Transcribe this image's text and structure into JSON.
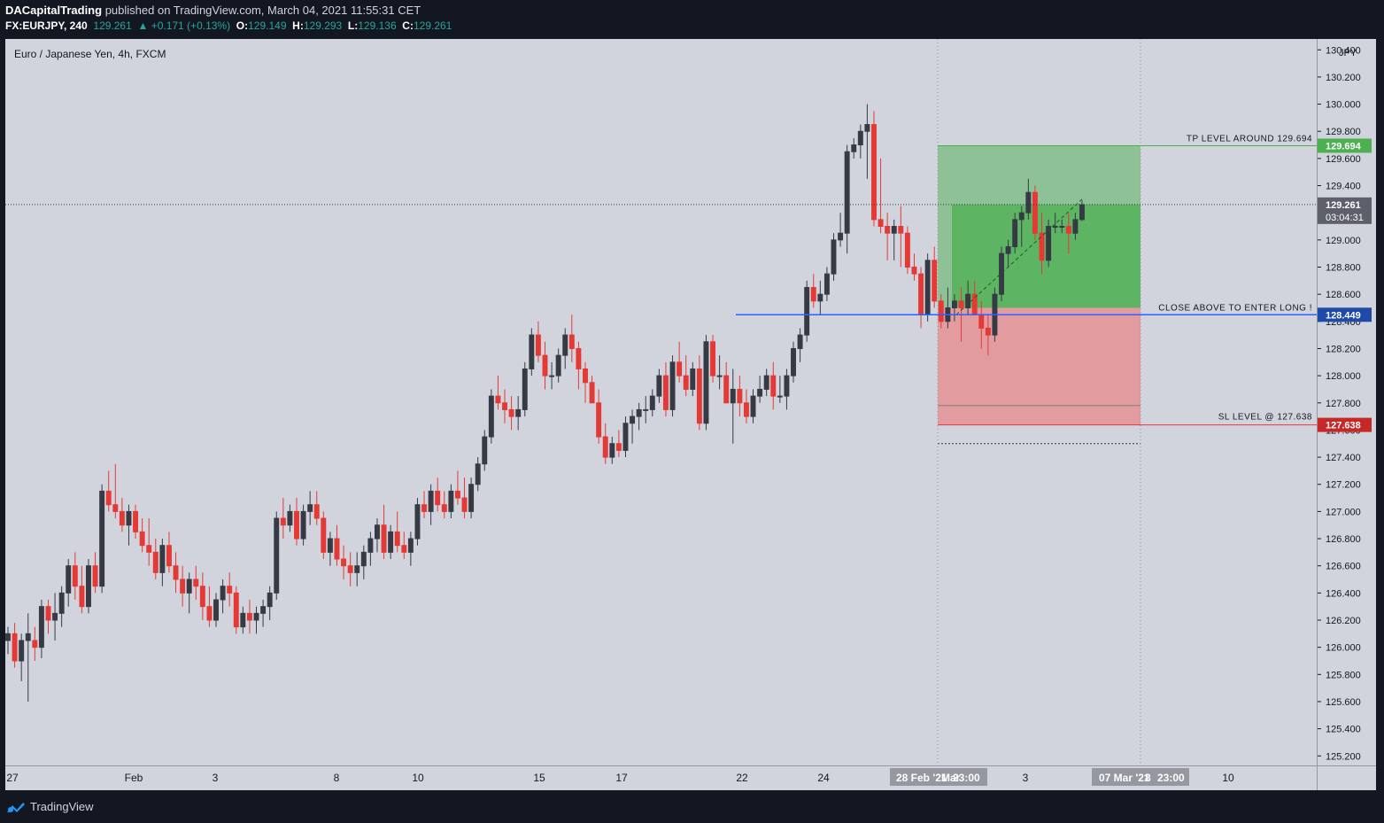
{
  "header": {
    "author": "DACapitalTrading",
    "published": "published on TradingView.com, March 04, 2021 11:55:31 CET",
    "symbol": "FX:EURJPY, 240",
    "last": "129.261",
    "change_arrow": "▲",
    "change": "+0.171 (+0.13%)",
    "o_label": "O:",
    "o": "129.149",
    "h_label": "H:",
    "h": "129.293",
    "l_label": "L:",
    "l": "129.136",
    "c_label": "C:",
    "c": "129.261"
  },
  "footer": {
    "brand": "TradingView",
    "icon": "tradingview-logo-icon"
  },
  "colors": {
    "background": "#d1d4dc",
    "bull": "#363a45",
    "bear": "#e53935",
    "hline": "#2962ff",
    "tp_zone": "#4caf50",
    "sl_zone": "#f06e70",
    "tp_badge": "#4caf50",
    "sl_badge": "#c62828",
    "entry_badge": "#1e4aa8"
  },
  "chart_data": {
    "type": "candlestick",
    "title": "Euro / Japanese Yen, 4h, FXCM",
    "currency_label": "JPY",
    "ylim": [
      125.13,
      130.48
    ],
    "y_ticks": [
      "125.200",
      "125.400",
      "125.600",
      "125.800",
      "126.000",
      "126.200",
      "126.400",
      "126.600",
      "126.800",
      "127.000",
      "127.200",
      "127.400",
      "127.600",
      "127.800",
      "128.000",
      "128.200",
      "128.400",
      "128.600",
      "128.800",
      "129.000",
      "129.200",
      "129.400",
      "129.600",
      "129.800",
      "130.000",
      "130.200",
      "130.400"
    ],
    "x_ticks": [
      "27",
      "Feb",
      "3",
      "8",
      "10",
      "15",
      "17",
      "22",
      "24",
      "3",
      "10"
    ],
    "x_highlight_labels": [
      "28 Feb '21",
      "Mar",
      "23:00",
      "07 Mar '21",
      "8",
      "23:00"
    ],
    "current_price": {
      "value": "129.261",
      "countdown": "03:04:31"
    },
    "levels": {
      "tp": {
        "value": 129.694,
        "label": "TP LEVEL AROUND 129.694",
        "badge": "129.694"
      },
      "entry": {
        "value": 128.449,
        "label": "CLOSE ABOVE TO ENTER LONG !",
        "badge": "128.449"
      },
      "sl": {
        "value": 127.638,
        "label": "SL LEVEL @ 127.638",
        "badge": "127.638"
      }
    },
    "position": {
      "entry_from": 128.5,
      "current": 129.261,
      "tp": 129.694,
      "sl": 127.638,
      "stop_dotted": 127.5,
      "sl_inner": 127.78
    },
    "candles": [
      [
        126.05,
        126.15,
        125.95,
        126.1
      ],
      [
        126.1,
        126.18,
        125.85,
        125.9
      ],
      [
        125.9,
        126.1,
        125.75,
        126.05
      ],
      [
        126.05,
        126.25,
        125.6,
        126.1
      ],
      [
        126.05,
        126.15,
        125.9,
        126.0
      ],
      [
        126.0,
        126.35,
        125.92,
        126.3
      ],
      [
        126.3,
        126.35,
        126.1,
        126.2
      ],
      [
        126.2,
        126.4,
        126.05,
        126.25
      ],
      [
        126.25,
        126.45,
        126.15,
        126.4
      ],
      [
        126.4,
        126.65,
        126.3,
        126.6
      ],
      [
        126.6,
        126.7,
        126.35,
        126.45
      ],
      [
        126.45,
        126.6,
        126.25,
        126.3
      ],
      [
        126.3,
        126.65,
        126.25,
        126.6
      ],
      [
        126.6,
        126.7,
        126.4,
        126.45
      ],
      [
        126.45,
        127.2,
        126.4,
        127.15
      ],
      [
        127.15,
        127.3,
        127.0,
        127.05
      ],
      [
        127.05,
        127.35,
        126.95,
        127.0
      ],
      [
        127.0,
        127.1,
        126.85,
        126.9
      ],
      [
        126.9,
        127.05,
        126.75,
        127.0
      ],
      [
        127.0,
        127.05,
        126.8,
        126.85
      ],
      [
        126.85,
        126.95,
        126.7,
        126.75
      ],
      [
        126.75,
        126.95,
        126.6,
        126.7
      ],
      [
        126.7,
        126.8,
        126.5,
        126.55
      ],
      [
        126.55,
        126.8,
        126.45,
        126.75
      ],
      [
        126.75,
        126.85,
        126.55,
        126.6
      ],
      [
        126.6,
        126.7,
        126.4,
        126.5
      ],
      [
        126.5,
        126.6,
        126.3,
        126.4
      ],
      [
        126.4,
        126.55,
        126.25,
        126.5
      ],
      [
        126.5,
        126.6,
        126.35,
        126.45
      ],
      [
        126.45,
        126.55,
        126.2,
        126.3
      ],
      [
        126.3,
        126.45,
        126.15,
        126.2
      ],
      [
        126.2,
        126.4,
        126.15,
        126.35
      ],
      [
        126.35,
        126.5,
        126.25,
        126.45
      ],
      [
        126.45,
        126.55,
        126.3,
        126.4
      ],
      [
        126.4,
        126.45,
        126.1,
        126.15
      ],
      [
        126.15,
        126.3,
        126.1,
        126.25
      ],
      [
        126.25,
        126.35,
        126.1,
        126.2
      ],
      [
        126.2,
        126.3,
        126.1,
        126.25
      ],
      [
        126.25,
        126.35,
        126.15,
        126.3
      ],
      [
        126.3,
        126.45,
        126.2,
        126.4
      ],
      [
        126.4,
        127.0,
        126.35,
        126.95
      ],
      [
        126.95,
        127.1,
        126.8,
        126.9
      ],
      [
        126.9,
        127.05,
        126.85,
        127.0
      ],
      [
        127.0,
        127.1,
        126.75,
        126.8
      ],
      [
        126.8,
        127.05,
        126.75,
        127.0
      ],
      [
        127.0,
        127.15,
        126.9,
        127.05
      ],
      [
        127.05,
        127.15,
        126.9,
        126.95
      ],
      [
        126.95,
        127.0,
        126.65,
        126.7
      ],
      [
        126.7,
        126.85,
        126.6,
        126.8
      ],
      [
        126.8,
        126.9,
        126.6,
        126.65
      ],
      [
        126.65,
        126.75,
        126.5,
        126.6
      ],
      [
        126.6,
        126.7,
        126.45,
        126.55
      ],
      [
        126.55,
        126.7,
        126.45,
        126.6
      ],
      [
        126.6,
        126.75,
        126.5,
        126.7
      ],
      [
        126.7,
        126.85,
        126.6,
        126.8
      ],
      [
        126.8,
        126.95,
        126.7,
        126.9
      ],
      [
        126.9,
        127.05,
        126.65,
        126.7
      ],
      [
        126.7,
        126.9,
        126.65,
        126.85
      ],
      [
        126.85,
        127.0,
        126.7,
        126.75
      ],
      [
        126.75,
        126.85,
        126.65,
        126.7
      ],
      [
        126.7,
        126.85,
        126.6,
        126.8
      ],
      [
        126.8,
        127.1,
        126.75,
        127.05
      ],
      [
        127.05,
        127.15,
        126.95,
        127.0
      ],
      [
        127.0,
        127.2,
        126.9,
        127.15
      ],
      [
        127.15,
        127.25,
        127.0,
        127.05
      ],
      [
        127.05,
        127.15,
        126.95,
        127.0
      ],
      [
        127.0,
        127.2,
        126.95,
        127.15
      ],
      [
        127.15,
        127.3,
        127.05,
        127.1
      ],
      [
        127.1,
        127.25,
        126.95,
        127.0
      ],
      [
        127.0,
        127.25,
        126.95,
        127.2
      ],
      [
        127.2,
        127.4,
        127.15,
        127.35
      ],
      [
        127.35,
        127.6,
        127.3,
        127.55
      ],
      [
        127.55,
        127.9,
        127.5,
        127.85
      ],
      [
        127.85,
        128.0,
        127.75,
        127.8
      ],
      [
        127.8,
        127.9,
        127.65,
        127.75
      ],
      [
        127.75,
        127.85,
        127.6,
        127.7
      ],
      [
        127.7,
        127.85,
        127.6,
        127.75
      ],
      [
        127.75,
        128.1,
        127.7,
        128.05
      ],
      [
        128.05,
        128.35,
        128.0,
        128.3
      ],
      [
        128.3,
        128.4,
        128.1,
        128.15
      ],
      [
        128.15,
        128.25,
        127.9,
        128.0
      ],
      [
        128.0,
        128.1,
        127.9,
        128.0
      ],
      [
        128.0,
        128.2,
        127.95,
        128.15
      ],
      [
        128.15,
        128.35,
        128.05,
        128.3
      ],
      [
        128.3,
        128.45,
        128.1,
        128.2
      ],
      [
        128.2,
        128.25,
        127.9,
        128.05
      ],
      [
        128.05,
        128.1,
        127.8,
        127.95
      ],
      [
        127.95,
        128.0,
        127.8,
        127.8
      ],
      [
        127.8,
        127.9,
        127.5,
        127.55
      ],
      [
        127.55,
        127.65,
        127.35,
        127.4
      ],
      [
        127.4,
        127.55,
        127.35,
        127.5
      ],
      [
        127.5,
        127.6,
        127.4,
        127.45
      ],
      [
        127.45,
        127.7,
        127.4,
        127.65
      ],
      [
        127.65,
        127.75,
        127.5,
        127.7
      ],
      [
        127.7,
        127.8,
        127.6,
        127.75
      ],
      [
        127.75,
        127.85,
        127.65,
        127.75
      ],
      [
        127.75,
        127.9,
        127.7,
        127.85
      ],
      [
        127.85,
        128.05,
        127.8,
        128.0
      ],
      [
        128.0,
        128.1,
        127.7,
        127.75
      ],
      [
        127.75,
        128.15,
        127.7,
        128.1
      ],
      [
        128.1,
        128.25,
        127.95,
        128.0
      ],
      [
        128.0,
        128.15,
        127.85,
        127.9
      ],
      [
        127.9,
        128.1,
        127.85,
        128.05
      ],
      [
        128.05,
        128.15,
        127.6,
        127.65
      ],
      [
        127.65,
        128.3,
        127.6,
        128.25
      ],
      [
        128.25,
        128.3,
        127.95,
        128.0
      ],
      [
        128.0,
        128.15,
        127.9,
        128.0
      ],
      [
        128.0,
        128.1,
        127.8,
        127.8
      ],
      [
        127.8,
        128.05,
        127.5,
        127.9
      ],
      [
        127.9,
        128.0,
        127.7,
        127.8
      ],
      [
        127.8,
        127.9,
        127.65,
        127.7
      ],
      [
        127.7,
        127.9,
        127.65,
        127.85
      ],
      [
        127.85,
        128.0,
        127.8,
        127.9
      ],
      [
        127.9,
        128.05,
        127.85,
        128.0
      ],
      [
        128.0,
        128.1,
        127.75,
        127.85
      ],
      [
        127.85,
        128.0,
        127.8,
        127.85
      ],
      [
        127.85,
        128.05,
        127.75,
        128.0
      ],
      [
        128.0,
        128.25,
        127.95,
        128.2
      ],
      [
        128.2,
        128.35,
        128.1,
        128.3
      ],
      [
        128.3,
        128.7,
        128.25,
        128.65
      ],
      [
        128.65,
        128.75,
        128.5,
        128.55
      ],
      [
        128.55,
        128.7,
        128.45,
        128.6
      ],
      [
        128.6,
        128.8,
        128.55,
        128.75
      ],
      [
        128.75,
        129.05,
        128.7,
        129.0
      ],
      [
        129.0,
        129.2,
        128.95,
        129.05
      ],
      [
        129.05,
        129.7,
        128.9,
        129.65
      ],
      [
        129.65,
        129.75,
        129.6,
        129.7
      ],
      [
        129.7,
        129.85,
        129.6,
        129.8
      ],
      [
        129.8,
        130.0,
        129.45,
        129.85
      ],
      [
        129.85,
        129.95,
        129.1,
        129.15
      ],
      [
        129.15,
        129.6,
        129.05,
        129.1
      ],
      [
        129.1,
        129.2,
        128.85,
        129.05
      ],
      [
        129.05,
        129.15,
        128.85,
        129.1
      ],
      [
        129.1,
        129.25,
        128.8,
        129.05
      ],
      [
        129.05,
        129.1,
        128.75,
        128.8
      ],
      [
        128.8,
        128.9,
        128.7,
        128.75
      ],
      [
        128.75,
        128.8,
        128.35,
        128.45
      ],
      [
        128.45,
        128.9,
        128.4,
        128.85
      ],
      [
        128.85,
        128.95,
        128.5,
        128.55
      ],
      [
        128.55,
        128.6,
        128.35,
        128.4
      ],
      [
        128.4,
        128.65,
        128.35,
        128.5
      ],
      [
        128.5,
        128.6,
        128.4,
        128.55
      ],
      [
        128.55,
        128.65,
        128.25,
        128.5
      ],
      [
        128.5,
        128.7,
        128.45,
        128.6
      ],
      [
        128.6,
        128.7,
        128.45,
        128.45
      ],
      [
        128.45,
        128.55,
        128.2,
        128.35
      ],
      [
        128.35,
        128.45,
        128.15,
        128.3
      ],
      [
        128.3,
        128.65,
        128.25,
        128.6
      ],
      [
        128.6,
        128.95,
        128.55,
        128.9
      ],
      [
        128.9,
        129.0,
        128.8,
        128.95
      ],
      [
        128.95,
        129.2,
        128.9,
        129.15
      ],
      [
        129.15,
        129.25,
        128.95,
        129.2
      ],
      [
        129.2,
        129.45,
        129.15,
        129.35
      ],
      [
        129.35,
        129.4,
        129.0,
        129.05
      ],
      [
        129.05,
        129.2,
        128.75,
        128.85
      ],
      [
        128.85,
        129.15,
        128.8,
        129.1
      ],
      [
        129.1,
        129.2,
        129.05,
        129.1
      ],
      [
        129.1,
        129.15,
        129.05,
        129.1
      ],
      [
        129.1,
        129.2,
        128.9,
        129.05
      ],
      [
        129.05,
        129.2,
        129.0,
        129.15
      ],
      [
        129.15,
        129.29,
        129.14,
        129.26
      ]
    ]
  }
}
